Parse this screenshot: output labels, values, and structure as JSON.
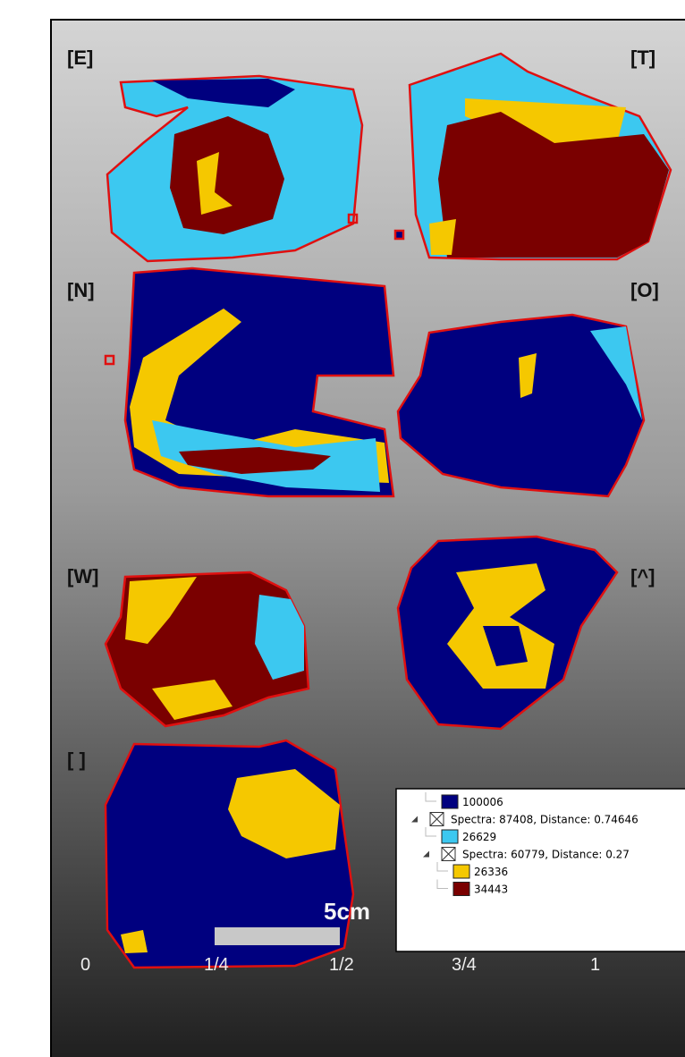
{
  "panels": [
    {
      "label": "[E]"
    },
    {
      "label": "[T]"
    },
    {
      "label": "[N]"
    },
    {
      "label": "[O]"
    },
    {
      "label": "[W]"
    },
    {
      "label": "[^]"
    },
    {
      "label": "[ ]"
    }
  ],
  "legend": {
    "items": [
      {
        "text": 100006,
        "color": "#00007f",
        "level": 1
      },
      {
        "text": "Spectra: 87408, Distance: 0.74646",
        "group": true,
        "level": 0
      },
      {
        "text": 26629,
        "color": "#3cc8f0",
        "level": 1
      },
      {
        "text": "Spectra: 60779, Distance: 0.27",
        "group": true,
        "level": 1
      },
      {
        "text": 26336,
        "color": "#f5c800",
        "level": 2
      },
      {
        "text": 34443,
        "color": "#7a0000",
        "level": 2
      }
    ]
  },
  "scale": {
    "length": "5cm",
    "labels": [
      "0",
      "1/4",
      "1/2",
      "3/4",
      "1"
    ]
  }
}
